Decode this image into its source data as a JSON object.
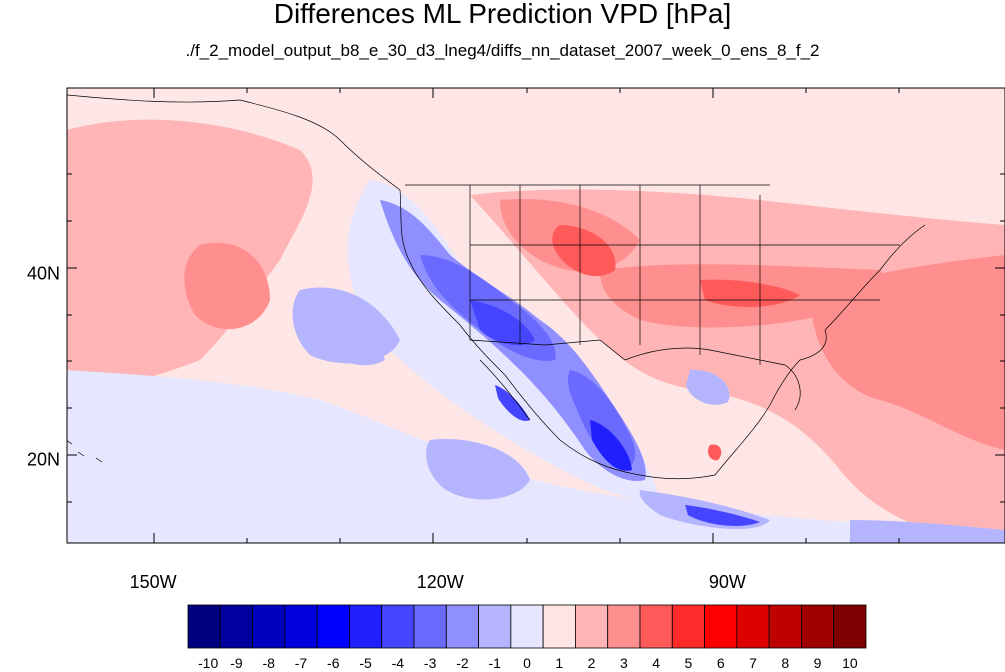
{
  "title": "Differences ML Prediction VPD [hPa]",
  "subtitle": "./f_2_model_output_b8_e_30_d3_lneg4/diffs_nn_dataset_2007_week_0_ens_8_f_2",
  "x_axis": {
    "ticks": [
      "150W",
      "120W",
      "90W"
    ],
    "lon": [
      -150,
      -120,
      -90
    ],
    "range": [
      -159,
      -61
    ]
  },
  "y_axis": {
    "ticks": [
      "40N",
      "20N"
    ],
    "lat": [
      40,
      20
    ],
    "range": [
      11,
      60
    ]
  },
  "colorbar": {
    "labels": [
      "-10",
      "-9",
      "-8",
      "-7",
      "-6",
      "-5",
      "-4",
      "-3",
      "-2",
      "-1",
      "0",
      "1",
      "2",
      "3",
      "4",
      "5",
      "6",
      "7",
      "8",
      "9",
      "10"
    ],
    "colors": [
      "#00007f",
      "#00009f",
      "#0000bf",
      "#0000df",
      "#0000ff",
      "#2020ff",
      "#4545ff",
      "#6a6aff",
      "#8f8fff",
      "#b5b5ff",
      "#e6e6ff",
      "#ffe6e6",
      "#ffb5b5",
      "#ff8f8f",
      "#ff5a5a",
      "#ff2a2a",
      "#ff0000",
      "#df0000",
      "#bf0000",
      "#9f0000",
      "#7f0000"
    ]
  }
}
